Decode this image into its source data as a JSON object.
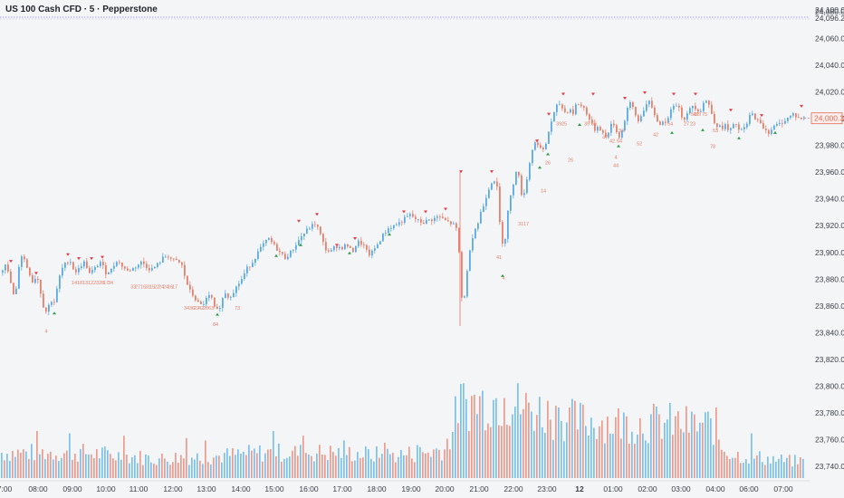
{
  "header": {
    "title": "US 100 Cash CFD · 5 · Pepperstone"
  },
  "colors": {
    "background": "#f4f5f7",
    "up": "#5aa9e6",
    "down": "#e8806c",
    "vol_up": "#7cc0ee",
    "vol_down": "#ee9a8c",
    "signal_high": "#e53945",
    "signal_low": "#2e9e4a",
    "annotation": "#e8806c",
    "ref_line": "#7a6cf0",
    "price_tag": "#e36b55"
  },
  "chart_data": {
    "type": "candlestick",
    "title": "US 100 Cash CFD · 5 · Pepperstone",
    "symbol": "US 100 Cash CFD",
    "interval": "5",
    "source": "Pepperstone",
    "ylim": [
      23730,
      24100
    ],
    "y_ticks": [
      "23,740.0",
      "23,760.0",
      "23,780.0",
      "23,800.0",
      "23,820.0",
      "23,840.0",
      "23,860.0",
      "23,880.0",
      "23,900.0",
      "23,920.0",
      "23,940.0",
      "23,960.0",
      "23,980.0",
      "24,000.0",
      "24,020.0",
      "24,040.0",
      "24,060.0",
      "24,080.0"
    ],
    "y_tick_values": [
      23740,
      23760,
      23780,
      23800,
      23820,
      23840,
      23860,
      23880,
      23900,
      23920,
      23940,
      23960,
      23980,
      24000,
      24020,
      24040,
      24060,
      24080
    ],
    "top_labels": [
      "24,100.0",
      "24,096.2"
    ],
    "reference_line": 24096.2,
    "last_price": "24,000.3",
    "last_price_value": 24000.3,
    "x_labels": [
      "7:00",
      "08:00",
      "09:00",
      "10:00",
      "11:00",
      "12:00",
      "13:00",
      "14:00",
      "15:00",
      "16:00",
      "17:00",
      "18:00",
      "19:00",
      "20:00",
      "21:00",
      "22:00",
      "23:00",
      "12",
      "01:00",
      "02:00",
      "03:00",
      "04:00",
      "06:00",
      "07:00"
    ],
    "bold_x_label": "12",
    "price_path": [
      [
        0,
        23885
      ],
      [
        5,
        23892
      ],
      [
        10,
        23880
      ],
      [
        14,
        23868
      ],
      [
        17,
        23872
      ],
      [
        20,
        23890
      ],
      [
        24,
        23900
      ],
      [
        27,
        23892
      ],
      [
        31,
        23886
      ],
      [
        35,
        23878
      ],
      [
        40,
        23883
      ],
      [
        44,
        23870
      ],
      [
        47,
        23860
      ],
      [
        49,
        23855
      ],
      [
        52,
        23858
      ],
      [
        55,
        23865
      ],
      [
        58,
        23862
      ],
      [
        60,
        23864
      ],
      [
        64,
        23880
      ],
      [
        68,
        23888
      ],
      [
        72,
        23892
      ],
      [
        76,
        23895
      ],
      [
        80,
        23888
      ],
      [
        84,
        23885
      ],
      [
        88,
        23890
      ],
      [
        93,
        23893
      ],
      [
        98,
        23884
      ],
      [
        104,
        23888
      ],
      [
        110,
        23893
      ],
      [
        116,
        23885
      ],
      [
        122,
        23887
      ],
      [
        128,
        23894
      ],
      [
        134,
        23890
      ],
      [
        140,
        23886
      ],
      [
        146,
        23888
      ],
      [
        150,
        23890
      ],
      [
        156,
        23893
      ],
      [
        160,
        23890
      ],
      [
        166,
        23887
      ],
      [
        172,
        23890
      ],
      [
        178,
        23895
      ],
      [
        184,
        23898
      ],
      [
        190,
        23894
      ],
      [
        196,
        23893
      ],
      [
        200,
        23890
      ],
      [
        204,
        23880
      ],
      [
        208,
        23872
      ],
      [
        212,
        23868
      ],
      [
        216,
        23864
      ],
      [
        220,
        23860
      ],
      [
        224,
        23862
      ],
      [
        228,
        23866
      ],
      [
        232,
        23868
      ],
      [
        236,
        23858
      ],
      [
        240,
        23856
      ],
      [
        244,
        23864
      ],
      [
        248,
        23870
      ],
      [
        252,
        23866
      ],
      [
        256,
        23870
      ],
      [
        260,
        23874
      ],
      [
        266,
        23880
      ],
      [
        272,
        23888
      ],
      [
        278,
        23893
      ],
      [
        284,
        23900
      ],
      [
        290,
        23906
      ],
      [
        296,
        23910
      ],
      [
        302,
        23905
      ],
      [
        308,
        23900
      ],
      [
        314,
        23896
      ],
      [
        320,
        23900
      ],
      [
        326,
        23906
      ],
      [
        332,
        23912
      ],
      [
        336,
        23915
      ],
      [
        340,
        23918
      ],
      [
        344,
        23920
      ],
      [
        348,
        23922
      ],
      [
        352,
        23915
      ],
      [
        358,
        23903
      ],
      [
        364,
        23900
      ],
      [
        370,
        23905
      ],
      [
        376,
        23903
      ],
      [
        382,
        23906
      ],
      [
        388,
        23900
      ],
      [
        394,
        23908
      ],
      [
        400,
        23906
      ],
      [
        406,
        23898
      ],
      [
        410,
        23900
      ],
      [
        416,
        23906
      ],
      [
        422,
        23913
      ],
      [
        428,
        23918
      ],
      [
        434,
        23920
      ],
      [
        440,
        23922
      ],
      [
        446,
        23925
      ],
      [
        452,
        23928
      ],
      [
        456,
        23926
      ],
      [
        460,
        23924
      ],
      [
        466,
        23922
      ],
      [
        472,
        23924
      ],
      [
        478,
        23925
      ],
      [
        484,
        23927
      ],
      [
        490,
        23924
      ],
      [
        496,
        23922
      ],
      [
        502,
        23920
      ],
      [
        505,
        23912
      ],
      [
        507,
        23888
      ],
      [
        509,
        23866
      ],
      [
        512,
        23868
      ],
      [
        515,
        23885
      ],
      [
        518,
        23903
      ],
      [
        521,
        23912
      ],
      [
        524,
        23918
      ],
      [
        527,
        23922
      ],
      [
        530,
        23930
      ],
      [
        533,
        23935
      ],
      [
        536,
        23942
      ],
      [
        540,
        23950
      ],
      [
        544,
        23956
      ],
      [
        548,
        23948
      ],
      [
        551,
        23922
      ],
      [
        553,
        23912
      ],
      [
        556,
        23900
      ],
      [
        558,
        23922
      ],
      [
        561,
        23935
      ],
      [
        564,
        23945
      ],
      [
        567,
        23955
      ],
      [
        570,
        23965
      ],
      [
        573,
        23952
      ],
      [
        576,
        23940
      ],
      [
        579,
        23948
      ],
      [
        582,
        23958
      ],
      [
        585,
        23972
      ],
      [
        588,
        23980
      ],
      [
        592,
        23983
      ],
      [
        596,
        23978
      ],
      [
        600,
        23975
      ],
      [
        604,
        23988
      ],
      [
        608,
        23998
      ],
      [
        612,
        24006
      ],
      [
        616,
        24012
      ],
      [
        620,
        24008
      ],
      [
        624,
        24004
      ],
      [
        628,
        24008
      ],
      [
        632,
        24004
      ],
      [
        636,
        24012
      ],
      [
        640,
        24010
      ],
      [
        644,
        24008
      ],
      [
        648,
        24003
      ],
      [
        652,
        23996
      ],
      [
        656,
        23992
      ],
      [
        660,
        23995
      ],
      [
        664,
        23990
      ],
      [
        668,
        23986
      ],
      [
        672,
        23992
      ],
      [
        676,
        23998
      ],
      [
        680,
        23990
      ],
      [
        684,
        23986
      ],
      [
        688,
        23996
      ],
      [
        692,
        24008
      ],
      [
        696,
        24012
      ],
      [
        700,
        24004
      ],
      [
        704,
        23998
      ],
      [
        708,
        24004
      ],
      [
        712,
        24010
      ],
      [
        716,
        24012
      ],
      [
        720,
        24006
      ],
      [
        724,
        24000
      ],
      [
        728,
        23995
      ],
      [
        732,
        24000
      ],
      [
        736,
        23996
      ],
      [
        740,
        24008
      ],
      [
        744,
        24012
      ],
      [
        748,
        24010
      ],
      [
        752,
        24002
      ],
      [
        756,
        24000
      ],
      [
        760,
        24006
      ],
      [
        764,
        24010
      ],
      [
        768,
        24008
      ],
      [
        772,
        24005
      ],
      [
        776,
        24012
      ],
      [
        780,
        24014
      ],
      [
        784,
        24006
      ],
      [
        788,
        23998
      ],
      [
        792,
        23994
      ],
      [
        796,
        23993
      ],
      [
        800,
        23995
      ],
      [
        804,
        23990
      ],
      [
        808,
        23994
      ],
      [
        812,
        23996
      ],
      [
        816,
        23990
      ],
      [
        820,
        23992
      ],
      [
        824,
        23996
      ],
      [
        828,
        24004
      ],
      [
        832,
        24002
      ],
      [
        836,
        23998
      ],
      [
        840,
        23995
      ],
      [
        844,
        23992
      ],
      [
        848,
        23990
      ],
      [
        852,
        23993
      ],
      [
        856,
        23995
      ],
      [
        860,
        23996
      ],
      [
        864,
        23998
      ],
      [
        868,
        24000
      ],
      [
        872,
        24002
      ],
      [
        876,
        24004
      ],
      [
        880,
        24000
      ],
      [
        884,
        24001
      ],
      [
        888,
        24000
      ]
    ],
    "volume_profile": [
      [
        0,
        12
      ],
      [
        30,
        12
      ],
      [
        60,
        12
      ],
      [
        90,
        12
      ],
      [
        120,
        11
      ],
      [
        150,
        10
      ],
      [
        175,
        9
      ],
      [
        200,
        10
      ],
      [
        230,
        10
      ],
      [
        260,
        11
      ],
      [
        290,
        12
      ],
      [
        320,
        12
      ],
      [
        350,
        12
      ],
      [
        380,
        12
      ],
      [
        410,
        11
      ],
      [
        440,
        11
      ],
      [
        470,
        12
      ],
      [
        490,
        14
      ],
      [
        500,
        24
      ],
      [
        505,
        35
      ],
      [
        530,
        36
      ],
      [
        545,
        37
      ],
      [
        560,
        36
      ],
      [
        580,
        33
      ],
      [
        600,
        31
      ],
      [
        620,
        28
      ],
      [
        640,
        27
      ],
      [
        660,
        27
      ],
      [
        680,
        26
      ],
      [
        700,
        26
      ],
      [
        720,
        26
      ],
      [
        740,
        26
      ],
      [
        760,
        25
      ],
      [
        780,
        25
      ],
      [
        790,
        24
      ],
      [
        795,
        15
      ],
      [
        810,
        11
      ],
      [
        830,
        10
      ],
      [
        850,
        9
      ],
      [
        870,
        8
      ],
      [
        888,
        8
      ]
    ],
    "volume_spikes": [
      [
        40,
        20
      ],
      [
        75,
        19
      ],
      [
        135,
        18
      ],
      [
        205,
        17
      ],
      [
        225,
        16
      ],
      [
        300,
        20
      ],
      [
        335,
        18
      ],
      [
        380,
        16
      ],
      [
        425,
        15
      ],
      [
        460,
        14
      ],
      [
        555,
        34
      ],
      [
        615,
        30
      ],
      [
        790,
        30
      ],
      [
        830,
        19
      ]
    ],
    "signals_high": [
      [
        12,
        23893
      ],
      [
        40,
        23884
      ],
      [
        75,
        23898
      ],
      [
        87,
        23895
      ],
      [
        101,
        23895
      ],
      [
        113,
        23896
      ],
      [
        330,
        23923
      ],
      [
        350,
        23928
      ],
      [
        372,
        23905
      ],
      [
        392,
        23910
      ],
      [
        446,
        23930
      ],
      [
        470,
        23930
      ],
      [
        492,
        23932
      ],
      [
        509,
        23960
      ],
      [
        543,
        23960
      ],
      [
        593,
        23983
      ],
      [
        606,
        24003
      ],
      [
        622,
        24018
      ],
      [
        655,
        24018
      ],
      [
        690,
        24015
      ],
      [
        712,
        24019
      ],
      [
        744,
        24018
      ],
      [
        768,
        24018
      ],
      [
        807,
        24006
      ],
      [
        841,
        24002
      ],
      [
        885,
        24009
      ]
    ],
    "signals_low": [
      [
        60,
        23855
      ],
      [
        240,
        23854
      ],
      [
        305,
        23898
      ],
      [
        332,
        23906
      ],
      [
        386,
        23900
      ],
      [
        430,
        23914
      ],
      [
        555,
        23883
      ],
      [
        596,
        23964
      ],
      [
        605,
        23974
      ],
      [
        640,
        23996
      ],
      [
        683,
        23980
      ],
      [
        742,
        23990
      ],
      [
        776,
        23992
      ],
      [
        816,
        23986
      ],
      [
        856,
        23990
      ]
    ],
    "annotations": [
      [
        "4",
        51,
        23840
      ],
      [
        "14",
        82,
        23876
      ],
      [
        "18",
        88,
        23876
      ],
      [
        "13",
        94,
        23876
      ],
      [
        "12",
        100,
        23876
      ],
      [
        "23",
        106,
        23876
      ],
      [
        "28",
        112,
        23876
      ],
      [
        "17",
        117,
        23876
      ],
      [
        "34",
        122,
        23876
      ],
      [
        "33",
        147,
        23873
      ],
      [
        "27",
        152,
        23873
      ],
      [
        "16",
        158,
        23873
      ],
      [
        "31",
        163,
        23873
      ],
      [
        "15",
        168,
        23873
      ],
      [
        "22",
        173,
        23873
      ],
      [
        "24",
        178,
        23873
      ],
      [
        "24",
        183,
        23873
      ],
      [
        "16",
        188,
        23873
      ],
      [
        "17",
        193,
        23873
      ],
      [
        "34",
        206,
        23857
      ],
      [
        "36",
        212,
        23857
      ],
      [
        "22",
        217,
        23857
      ],
      [
        "42",
        222,
        23857
      ],
      [
        "20",
        227,
        23857
      ],
      [
        "63",
        233,
        23857
      ],
      [
        "73",
        262,
        23857
      ],
      [
        "84",
        238,
        23845
      ],
      [
        "41",
        551,
        23895
      ],
      [
        "4",
        556,
        23880
      ],
      [
        "31",
        575,
        23920
      ],
      [
        "17",
        581,
        23920
      ],
      [
        "14",
        600,
        23945
      ],
      [
        "26",
        605,
        23966
      ],
      [
        "26",
        630,
        23968
      ],
      [
        "39",
        617,
        23995
      ],
      [
        "25",
        623,
        23995
      ],
      [
        "39",
        648,
        23995
      ],
      [
        "56",
        656,
        23995
      ],
      [
        "47",
        668,
        23985
      ],
      [
        "42",
        676,
        23982
      ],
      [
        "54",
        684,
        23982
      ],
      [
        "34",
        686,
        23990
      ],
      [
        "52",
        706,
        23980
      ],
      [
        "42",
        724,
        23987
      ],
      [
        "54",
        740,
        23995
      ],
      [
        "27",
        758,
        23995
      ],
      [
        "23",
        765,
        23995
      ],
      [
        "51",
        766,
        24002
      ],
      [
        "45",
        768,
        24002
      ],
      [
        "79",
        771,
        24002
      ],
      [
        "75",
        778,
        24002
      ],
      [
        "53",
        790,
        23990
      ],
      [
        "78",
        787,
        23978
      ],
      [
        "4",
        680,
        23970
      ],
      [
        "44",
        680,
        23964
      ]
    ]
  }
}
